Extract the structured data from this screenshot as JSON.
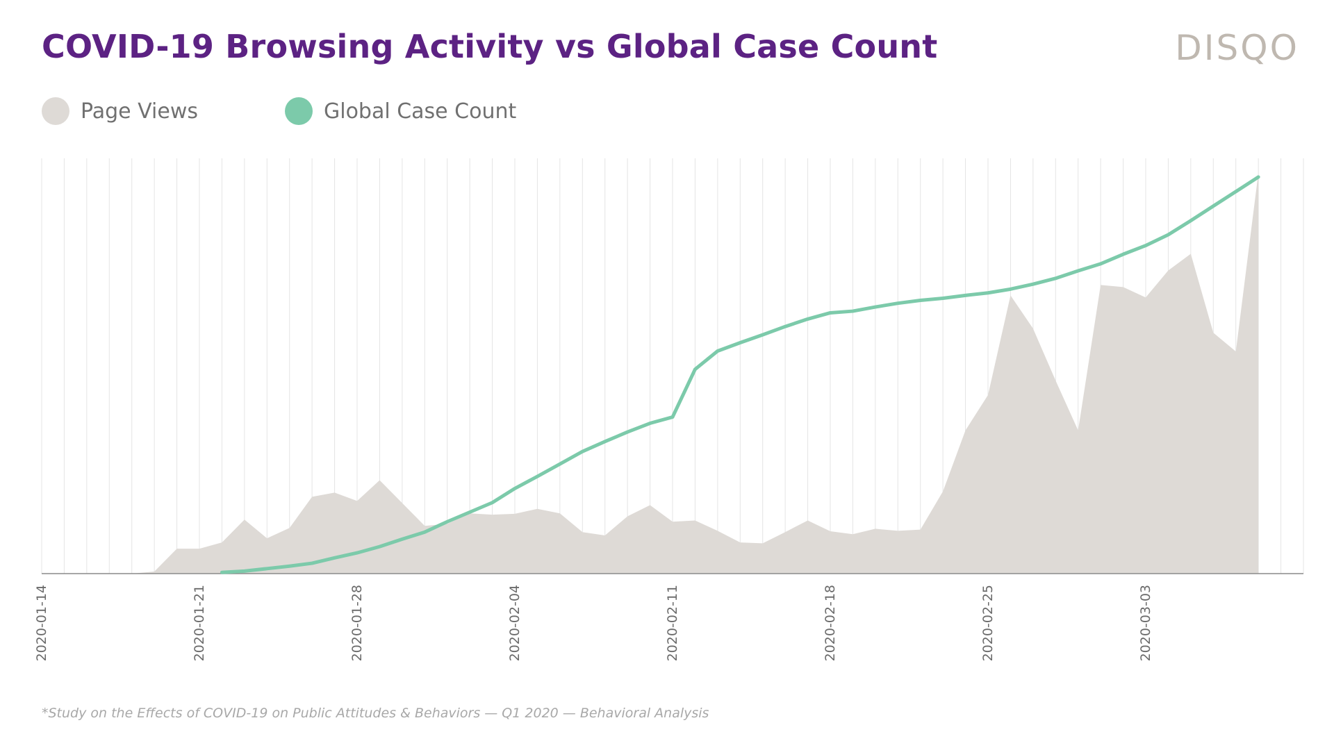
{
  "title": "COVID-19 Browsing Activity vs Global Case Count",
  "brand": "DISQO",
  "footnote": "*Study on the Effects of COVID-19 on Public Attitudes & Behaviors — Q1 2020 — Behavioral Analysis",
  "colors": {
    "title": "#5c2283",
    "page_views": "#dedad6",
    "case_count": "#7ccaaa",
    "grid": "#e4e4e4",
    "axis": "#8a8a8a",
    "tick_text": "#6a6a6a"
  },
  "chart_data": {
    "type": "area",
    "title": "COVID-19 Browsing Activity vs Global Case Count",
    "xlabel": "",
    "ylabel": "",
    "grid": "vertical",
    "legend_position": "top-left",
    "x_start": "2020-01-14",
    "x_end": "2020-03-10",
    "tick_labels": [
      "2020-01-14",
      "2020-01-21",
      "2020-01-28",
      "2020-02-04",
      "2020-02-11",
      "2020-02-18",
      "2020-02-25",
      "2020-03-03"
    ],
    "ylim": [
      0,
      100
    ],
    "series": [
      {
        "name": "Page Views",
        "kind": "area",
        "start": "2020-01-14",
        "values": [
          0,
          0,
          0,
          0,
          0,
          0.5,
          6,
          6,
          7.5,
          13,
          8.5,
          11,
          18.5,
          19.5,
          17.5,
          22.5,
          17,
          11.5,
          12,
          14.5,
          14.2,
          14.4,
          15.6,
          14.5,
          10,
          9.2,
          13.8,
          16.5,
          12.5,
          12.8,
          10.3,
          7.5,
          7.3,
          10,
          12.8,
          10.2,
          9.5,
          10.8,
          10.3,
          10.6,
          19.8,
          34.5,
          43,
          67,
          59,
          46.5,
          34.5,
          69.5,
          69,
          66.5,
          73,
          77,
          58,
          53.5,
          96.5
        ]
      },
      {
        "name": "Global Case Count",
        "kind": "line",
        "start": "2020-01-22",
        "values": [
          0.3,
          0.6,
          1.2,
          1.8,
          2.5,
          3.8,
          5,
          6.5,
          8.3,
          10,
          12.5,
          14.8,
          17.1,
          20.5,
          23.4,
          26.4,
          29.4,
          31.8,
          34.1,
          36.2,
          37.7,
          49.2,
          53.6,
          55.6,
          57.5,
          59.5,
          61.3,
          62.8,
          63.2,
          64.2,
          65.1,
          65.8,
          66.3,
          67,
          67.6,
          68.5,
          69.7,
          71.1,
          72.9,
          74.6,
          76.9,
          79,
          81.6,
          85,
          88.5,
          92,
          95.5
        ]
      }
    ]
  }
}
